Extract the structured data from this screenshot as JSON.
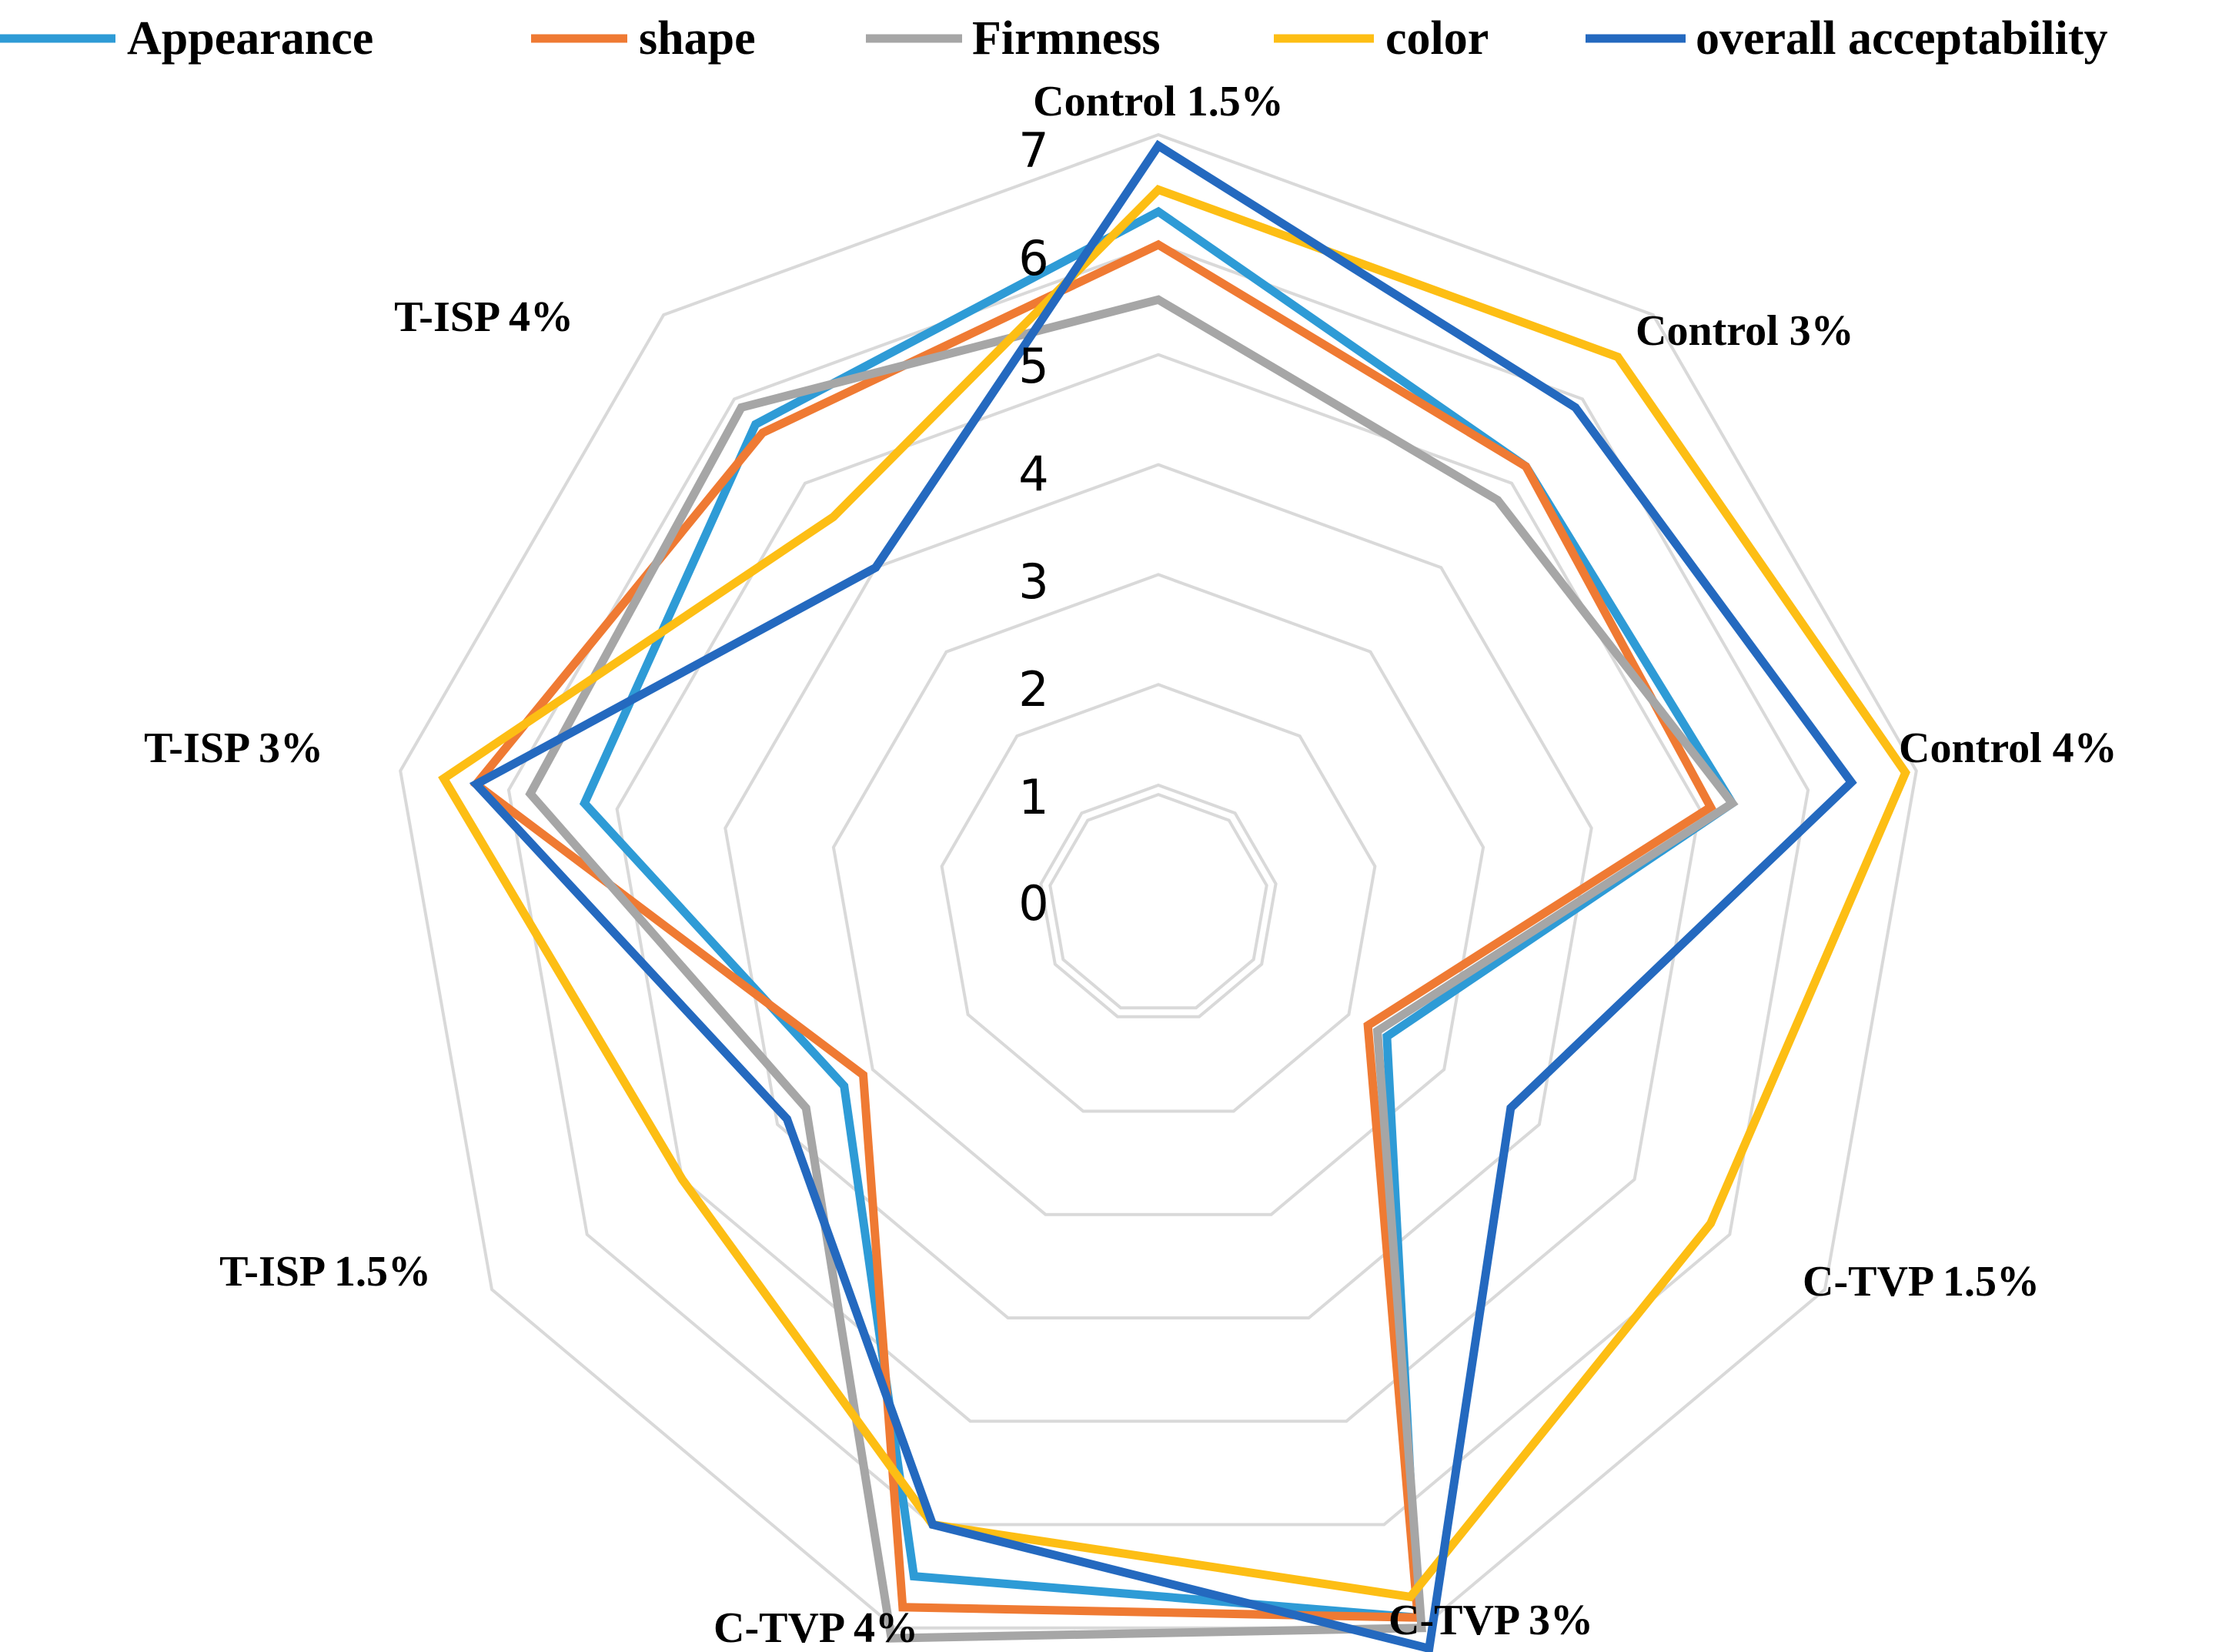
{
  "chart_data": {
    "type": "radar",
    "title": "",
    "categories": [
      "Control 1.5%",
      "Control 3%",
      "Control 4%",
      "C-TVP 1.5%",
      "C-TVP 3%",
      "C-TVP 4%",
      "T-ISP 1.5%",
      "T-ISP 3%",
      "T-ISP 4%"
    ],
    "rlim": [
      0,
      7
    ],
    "ticks": [
      "0",
      "1",
      "2",
      "3",
      "4",
      "5",
      "6",
      "7"
    ],
    "legend_position": "top",
    "series": [
      {
        "name": "Appearance",
        "color": "#2e9bd6",
        "values": [
          6.3,
          5.2,
          5.3,
          2.4,
          6.9,
          6.5,
          3.3,
          5.3,
          5.7
        ]
      },
      {
        "name": "shape",
        "color": "#ef7a33",
        "values": [
          6.0,
          5.2,
          5.1,
          2.2,
          6.9,
          6.8,
          3.1,
          6.3,
          5.6
        ]
      },
      {
        "name": "Firmness",
        "color": "#a6a6a6",
        "values": [
          5.5,
          4.8,
          5.3,
          2.3,
          7.0,
          7.1,
          3.7,
          5.8,
          5.9
        ]
      },
      {
        "name": "color",
        "color": "#fdbe14",
        "values": [
          6.5,
          6.5,
          6.9,
          5.8,
          6.7,
          6.0,
          5.0,
          6.6,
          4.6
        ]
      },
      {
        "name": "overall acceptability",
        "color": "#2469bf",
        "values": [
          6.9,
          5.9,
          6.4,
          3.7,
          7.2,
          6.0,
          3.9,
          6.3,
          4.0
        ]
      }
    ]
  }
}
